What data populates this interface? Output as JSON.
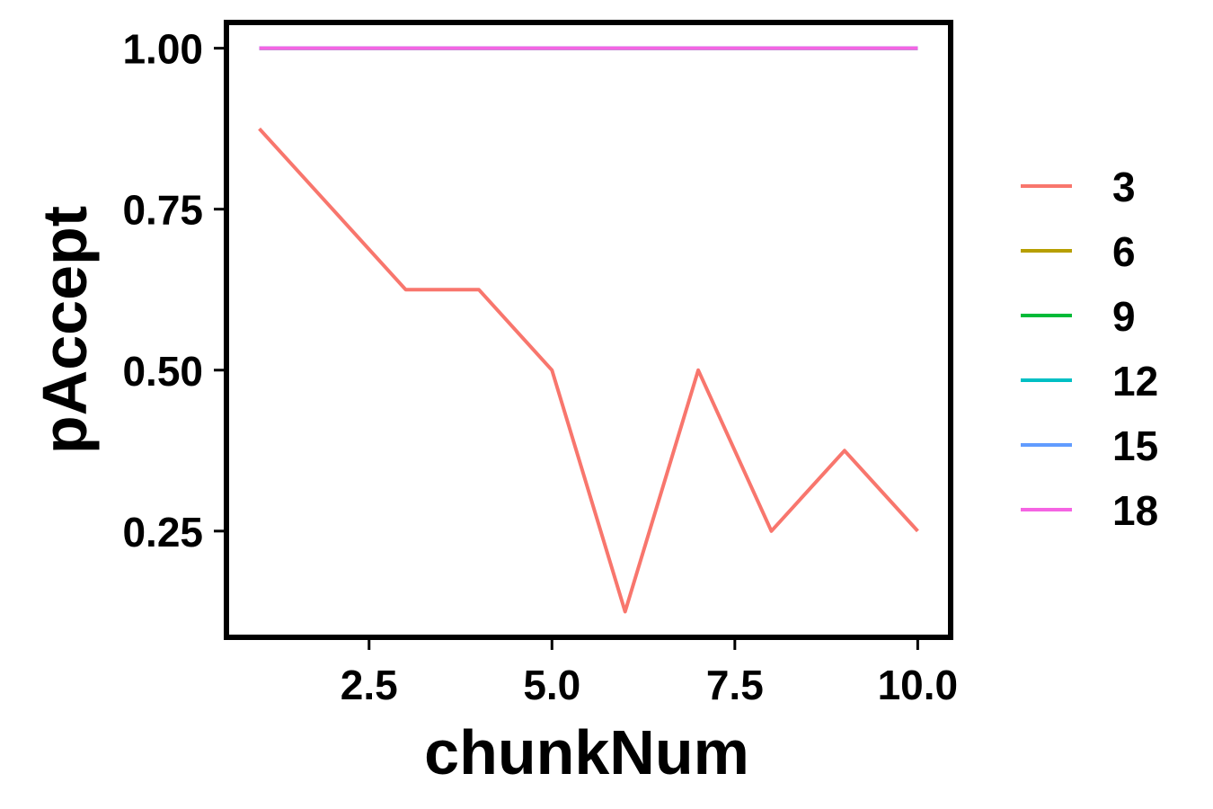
{
  "chart_data": {
    "type": "line",
    "title": "",
    "xlabel": "chunkNum",
    "ylabel": "pAccept",
    "xlim": [
      0.55,
      10.45
    ],
    "ylim": [
      0.085,
      1.04
    ],
    "xticks": [
      2.5,
      5.0,
      7.5,
      10.0
    ],
    "xtick_labels": [
      "2.5",
      "5.0",
      "7.5",
      "10.0"
    ],
    "yticks": [
      0.25,
      0.5,
      0.75,
      1.0
    ],
    "ytick_labels": [
      "0.25",
      "0.50",
      "0.75",
      "1.00"
    ],
    "grid": false,
    "legend_position": "right",
    "x": [
      1,
      2,
      3,
      4,
      5,
      6,
      7,
      8,
      9,
      10
    ],
    "series": [
      {
        "name": "3",
        "color": "#F8766D",
        "values": [
          0.875,
          0.75,
          0.625,
          0.625,
          0.5,
          0.125,
          0.5,
          0.25,
          0.375,
          0.25
        ]
      },
      {
        "name": "6",
        "color": "#B79F00",
        "values": [
          1,
          1,
          1,
          1,
          1,
          1,
          1,
          1,
          1,
          1
        ]
      },
      {
        "name": "9",
        "color": "#00BA38",
        "values": [
          1,
          1,
          1,
          1,
          1,
          1,
          1,
          1,
          1,
          1
        ]
      },
      {
        "name": "12",
        "color": "#00BFC4",
        "values": [
          1,
          1,
          1,
          1,
          1,
          1,
          1,
          1,
          1,
          1
        ]
      },
      {
        "name": "15",
        "color": "#619CFF",
        "values": [
          1,
          1,
          1,
          1,
          1,
          1,
          1,
          1,
          1,
          1
        ]
      },
      {
        "name": "18",
        "color": "#F564E3",
        "values": [
          1,
          1,
          1,
          1,
          1,
          1,
          1,
          1,
          1,
          1
        ]
      }
    ]
  }
}
